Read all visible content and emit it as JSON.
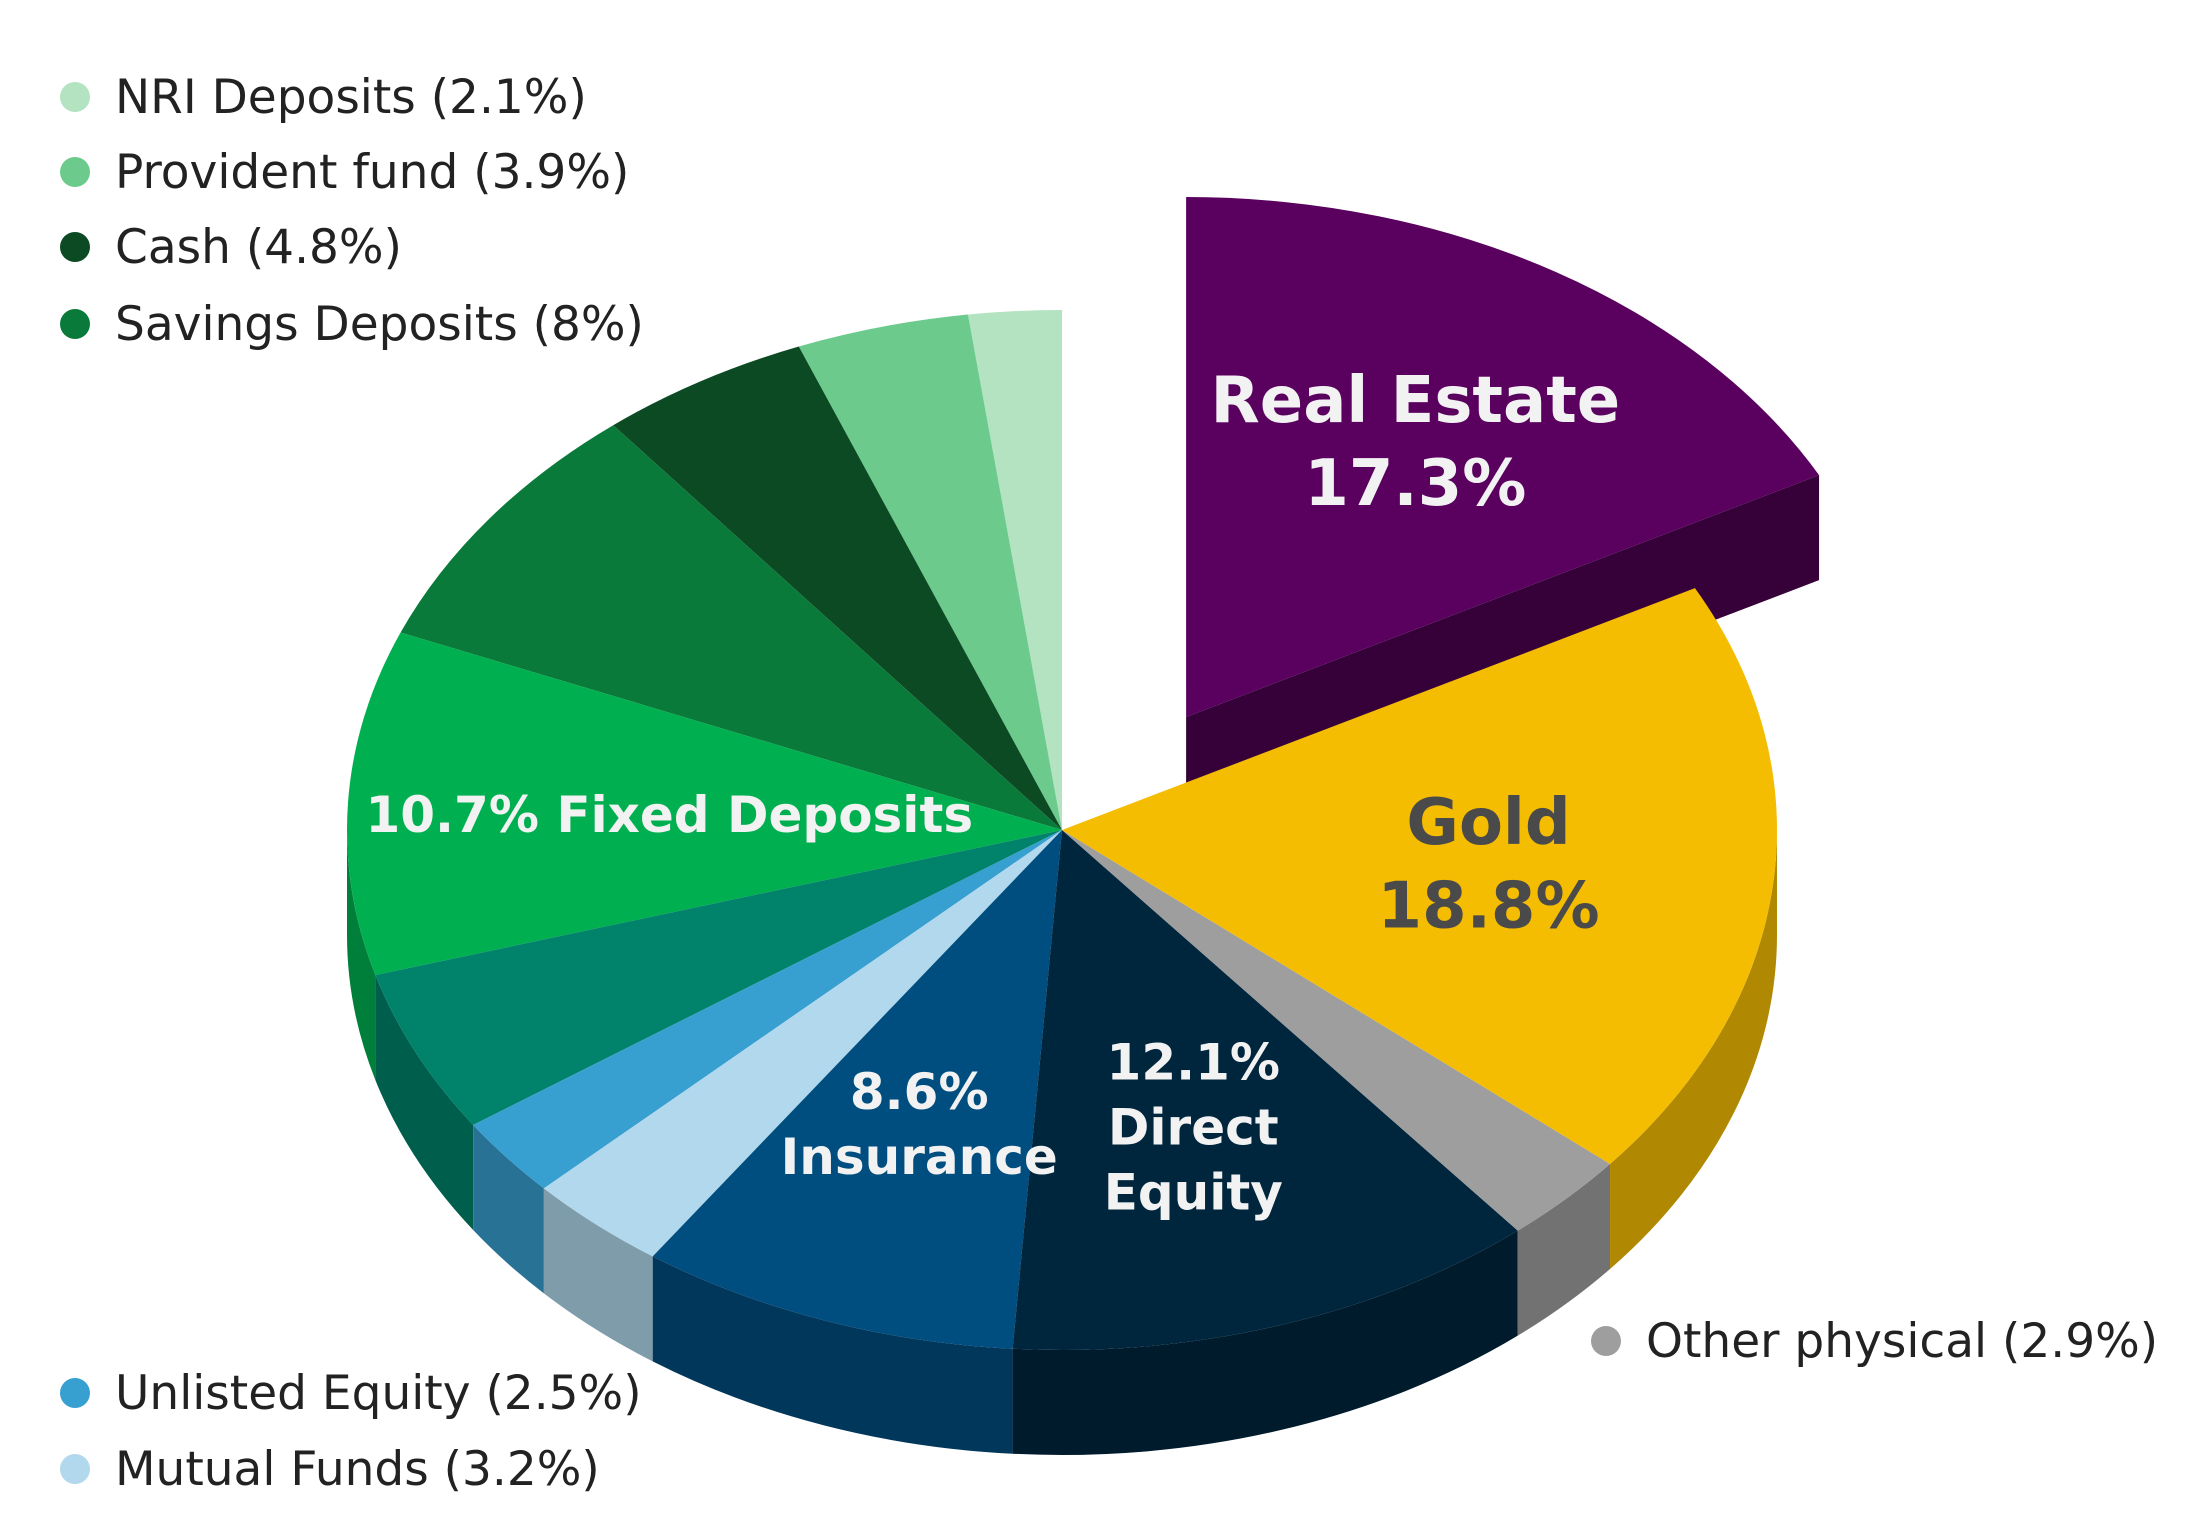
{
  "chart_data": {
    "type": "pie",
    "title": "",
    "slices": [
      {
        "name": "NRI Deposits",
        "value": 2.1,
        "legend": "NRI Deposits (2.1%)",
        "color": "#b3e3c0"
      },
      {
        "name": "Provident fund",
        "value": 3.9,
        "legend": "Provident fund (3.9%)",
        "color": "#6ccb8c"
      },
      {
        "name": "Cash",
        "value": 4.8,
        "legend": "Cash (4.8%)",
        "color": "#0b4a23"
      },
      {
        "name": "Savings Deposits",
        "value": 8.0,
        "legend": "Savings Deposits (8%)",
        "color": "#0a7a3a"
      },
      {
        "name": "Fixed Deposits",
        "value": 10.7,
        "label": [
          "10.7%  Fixed Deposits"
        ],
        "color": "#00b050"
      },
      {
        "name": "",
        "value": 5.1,
        "color": "#00836a"
      },
      {
        "name": "Unlisted Equity",
        "value": 2.5,
        "legend": "Unlisted Equity (2.5%)",
        "color": "#389fd1"
      },
      {
        "name": "Mutual Funds",
        "value": 3.2,
        "legend": "Mutual Funds (3.2%)",
        "color": "#b1d8ec"
      },
      {
        "name": "Insurance",
        "value": 8.6,
        "label": [
          "8.6%",
          "Insurance"
        ],
        "color": "#004d7f"
      },
      {
        "name": "Direct Equity",
        "value": 12.1,
        "label": [
          "12.1%",
          "Direct",
          "Equity"
        ],
        "color": "#00263d"
      },
      {
        "name": "Other physical",
        "value": 2.9,
        "legend": "Other physical (2.9%)",
        "color": "#9e9e9e"
      },
      {
        "name": "Gold",
        "value": 18.8,
        "label": [
          "Gold",
          "18.8%"
        ],
        "color": "#f5bd02"
      },
      {
        "name": "Real Estate",
        "value": 17.3,
        "label": [
          "Real Estate",
          "17.3%"
        ],
        "color": "#5a005f",
        "exploded": true
      }
    ],
    "legend_placement": "top-left, bottom-left, bottom-right"
  }
}
